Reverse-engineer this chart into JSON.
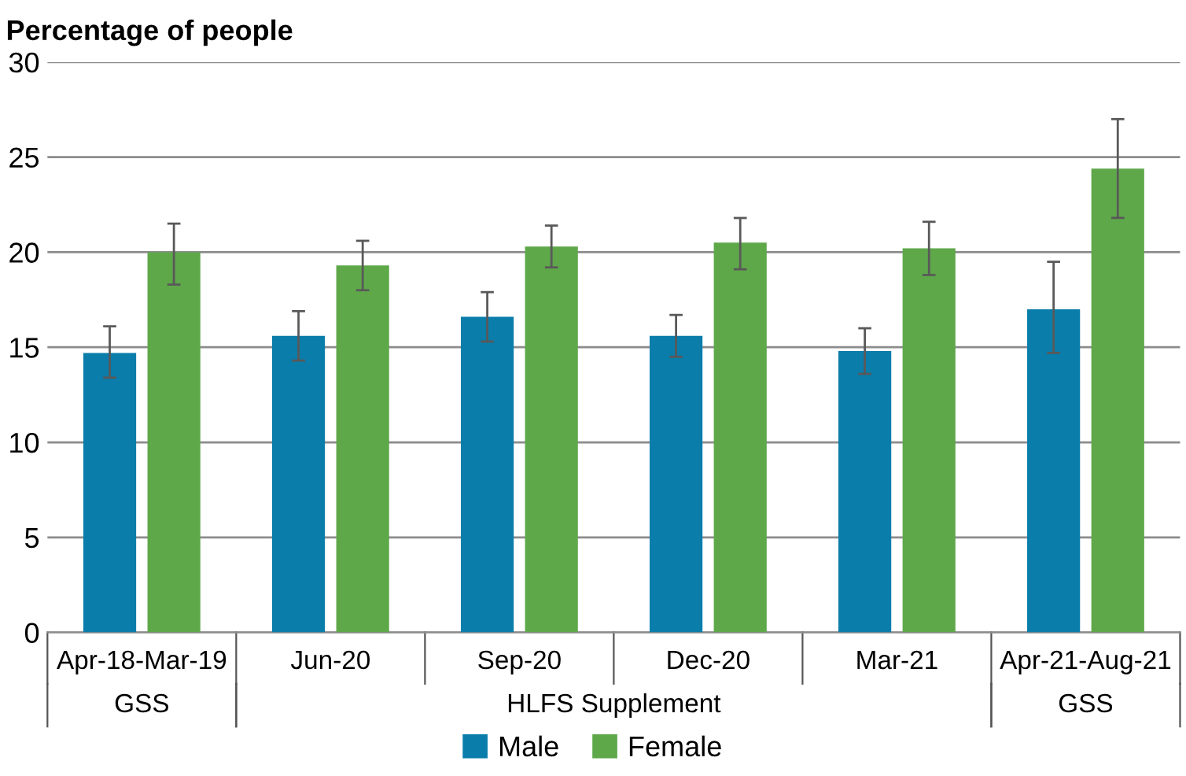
{
  "chart_data": {
    "type": "bar",
    "ylabel": "Percentage of people",
    "categories": [
      "Apr-18-Mar-19",
      "Jun-20",
      "Sep-20",
      "Dec-20",
      "Mar-21",
      "Apr-21-Aug-21"
    ],
    "series": [
      {
        "name": "Male",
        "color": "#0a7dab",
        "values": [
          14.7,
          15.6,
          16.6,
          15.6,
          14.8,
          17.0
        ],
        "errors": [
          [
            13.4,
            16.1
          ],
          [
            14.3,
            16.9
          ],
          [
            15.3,
            17.9
          ],
          [
            14.5,
            16.7
          ],
          [
            13.6,
            16.0
          ],
          [
            14.7,
            19.5
          ]
        ]
      },
      {
        "name": "Female",
        "color": "#5ea84a",
        "values": [
          20.0,
          19.3,
          20.3,
          20.5,
          20.2,
          24.4
        ],
        "errors": [
          [
            18.3,
            21.5
          ],
          [
            18.0,
            20.6
          ],
          [
            19.2,
            21.4
          ],
          [
            19.1,
            21.8
          ],
          [
            18.8,
            21.6
          ],
          [
            21.8,
            27.0
          ]
        ]
      }
    ],
    "annotations": [
      "GSS",
      "HLFS Supplement",
      "GSS"
    ],
    "ylim": [
      0,
      30
    ],
    "yticks": [
      0,
      5,
      10,
      15,
      20,
      25,
      30
    ],
    "grid": "y",
    "legend": "bottom"
  }
}
